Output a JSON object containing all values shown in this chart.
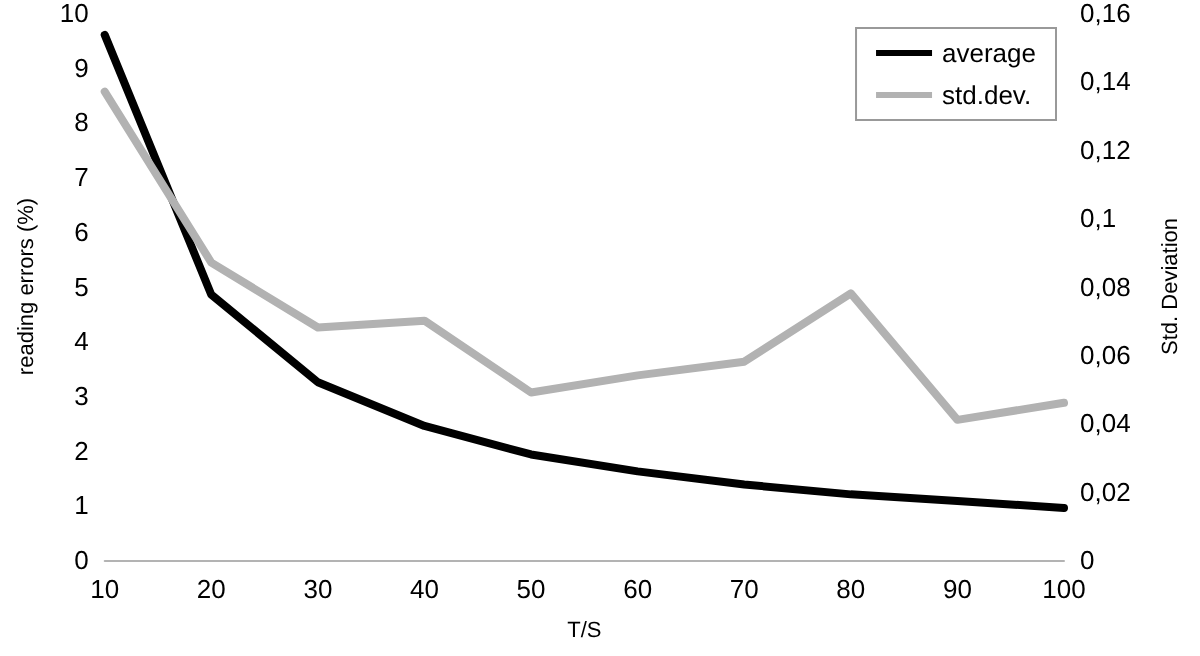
{
  "chart_data": {
    "type": "line",
    "xlabel": "T/S",
    "ylabel": "reading errors (%)",
    "y2label": "Std. Deviation",
    "x": [
      10,
      20,
      30,
      40,
      50,
      60,
      70,
      80,
      90,
      100
    ],
    "series": [
      {
        "name": "average",
        "color": "#000000",
        "values": [
          9.6,
          4.85,
          3.25,
          2.45,
          1.93,
          1.62,
          1.38,
          1.2,
          1.08,
          0.95
        ]
      },
      {
        "name": "std.dev.",
        "color": "#b2b2b2",
        "axis": "y2",
        "values": [
          0.137,
          0.087,
          0.068,
          0.07,
          0.049,
          0.054,
          0.058,
          0.078,
          0.041,
          0.046
        ]
      }
    ],
    "xlim": [
      10,
      100
    ],
    "xticks": [
      10,
      20,
      30,
      40,
      50,
      60,
      70,
      80,
      90,
      100
    ],
    "ylim": [
      0,
      10
    ],
    "yticks": [
      0,
      1,
      2,
      3,
      4,
      5,
      6,
      7,
      8,
      9,
      10
    ],
    "y2lim": [
      0,
      0.16
    ],
    "y2ticks": [
      0,
      {
        "value": 0.02,
        "label": "0,02"
      },
      {
        "value": 0.04,
        "label": "0,04"
      },
      {
        "value": 0.06,
        "label": "0,06"
      },
      {
        "value": 0.08,
        "label": "0,08"
      },
      {
        "value": 0.1,
        "label": "0,1"
      },
      {
        "value": 0.12,
        "label": "0,12"
      },
      {
        "value": 0.14,
        "label": "0,14"
      },
      {
        "value": 0.16,
        "label": "0,16"
      }
    ],
    "grid": false,
    "legend": "top right",
    "marker": "none",
    "line_style": "solid"
  }
}
